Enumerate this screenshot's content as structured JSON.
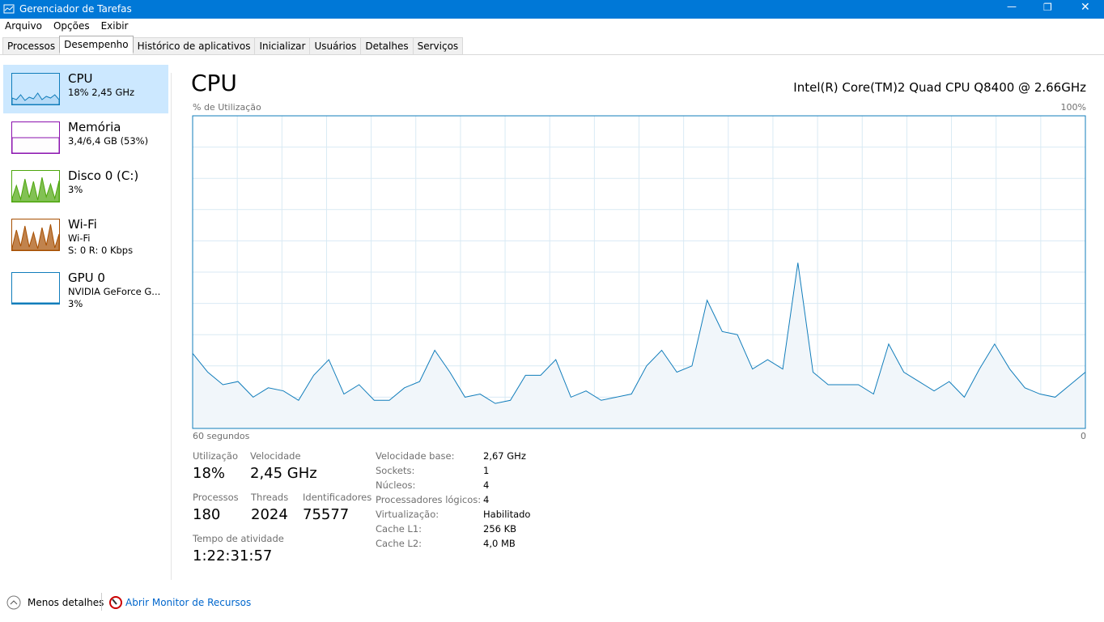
{
  "window_title": "Gerenciador de Tarefas",
  "menu": [
    "Arquivo",
    "Opções",
    "Exibir"
  ],
  "tabs": [
    "Processos",
    "Desempenho",
    "Histórico de aplicativos",
    "Inicializar",
    "Usuários",
    "Detalhes",
    "Serviços"
  ],
  "sidebar": [
    {
      "title": "CPU",
      "lines": [
        "18% 2,45 GHz"
      ]
    },
    {
      "title": "Memória",
      "lines": [
        "3,4/6,4 GB (53%)"
      ]
    },
    {
      "title": "Disco 0 (C:)",
      "lines": [
        "3%"
      ]
    },
    {
      "title": "Wi-Fi",
      "lines": [
        "Wi-Fi",
        "S: 0 R: 0 Kbps"
      ]
    },
    {
      "title": "GPU 0",
      "lines": [
        "NVIDIA GeForce G...",
        "3%"
      ]
    }
  ],
  "header": {
    "title": "CPU",
    "processor": "Intel(R) Core(TM)2 Quad CPU Q8400 @ 2.66GHz"
  },
  "chart_data": {
    "type": "line",
    "y_label": "% de Utilização",
    "y_max_label": "100%",
    "x_start_label": "60 segundos",
    "x_end_label": "0",
    "ylim": [
      0,
      100
    ],
    "color": "#117dbb",
    "values": [
      24,
      18,
      14,
      15,
      10,
      13,
      12,
      9,
      17,
      22,
      11,
      14,
      9,
      9,
      13,
      15,
      25,
      18,
      10,
      11,
      8,
      9,
      17,
      17,
      22,
      10,
      12,
      9,
      10,
      11,
      20,
      25,
      18,
      20,
      41,
      31,
      30,
      19,
      22,
      19,
      53,
      18,
      14,
      14,
      14,
      11,
      27,
      18,
      15,
      12,
      15,
      10,
      19,
      27,
      19,
      13,
      11,
      10,
      14,
      18
    ]
  },
  "stats": [
    [
      {
        "label": "Utilização",
        "value": "18%"
      },
      {
        "label": "Velocidade",
        "value": "2,45 GHz"
      }
    ],
    [
      {
        "label": "Processos",
        "value": "180"
      },
      {
        "label": "Threads",
        "value": "2024"
      },
      {
        "label": "Identificadores",
        "value": "75577"
      }
    ],
    [
      {
        "label": "Tempo de atividade",
        "value": "1:22:31:57"
      }
    ]
  ],
  "details": [
    [
      "Velocidade base:",
      "2,67 GHz"
    ],
    [
      "Sockets:",
      "1"
    ],
    [
      "Núcleos:",
      "4"
    ],
    [
      "Processadores lógicos:",
      "4"
    ],
    [
      "Virtualização:",
      "Habilitado"
    ],
    [
      "Cache L1:",
      "256 KB"
    ],
    [
      "Cache L2:",
      "4,0 MB"
    ]
  ],
  "footer": {
    "less": "Menos detalhes",
    "monitor": "Abrir Monitor de Recursos"
  }
}
